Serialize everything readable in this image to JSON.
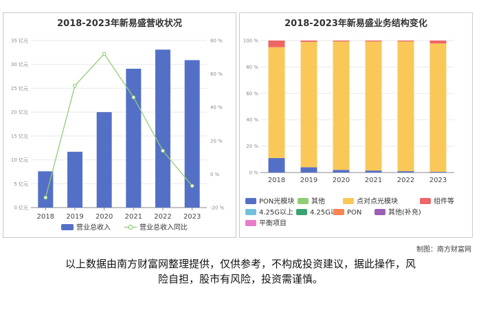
{
  "chart_data": [
    {
      "type": "bar",
      "title": "2018-2023年新易盛营收状况",
      "categories": [
        "2018",
        "2019",
        "2020",
        "2021",
        "2022",
        "2023"
      ],
      "series": [
        {
          "name": "营业总收入",
          "type": "bar",
          "axis": "left",
          "color": "#5470c6",
          "values": [
            7.6,
            11.7,
            20.0,
            29.1,
            33.1,
            30.9
          ]
        },
        {
          "name": "营业总收入同比",
          "type": "line",
          "axis": "right",
          "color": "#91cc75",
          "values": [
            -14.0,
            53.0,
            72.0,
            46.0,
            14.0,
            -7.0
          ]
        }
      ],
      "y_left": {
        "ticks": [
          "0 亿元",
          "5 亿元",
          "10 亿元",
          "15 亿元",
          "20 亿元",
          "25 亿元",
          "30 亿元",
          "35 亿元"
        ],
        "ylim": [
          0,
          35
        ]
      },
      "y_right": {
        "ticks": [
          "-20 %",
          "0 %",
          "20 %",
          "40 %",
          "60 %",
          "80 %"
        ],
        "ylim": [
          -20,
          80
        ]
      },
      "legend": "bottom"
    },
    {
      "type": "bar",
      "stacked": true,
      "title": "2018-2023年新易盛业务结构变化",
      "categories": [
        "2018",
        "2019",
        "2020",
        "2021",
        "2022",
        "2023"
      ],
      "series": [
        {
          "name": "PON光模块",
          "color": "#5470c6",
          "values": [
            11,
            4,
            2,
            1.5,
            1,
            0.5
          ]
        },
        {
          "name": "其他",
          "color": "#91cc75",
          "values": [
            0,
            0,
            0,
            0,
            0,
            0
          ]
        },
        {
          "name": "点对点光模块",
          "color": "#fac858",
          "values": [
            84,
            95,
            97.3,
            97.8,
            98.3,
            97.3
          ]
        },
        {
          "name": "组件等",
          "color": "#ee6666",
          "values": [
            5,
            1,
            0.7,
            0.7,
            0.7,
            2.2
          ]
        },
        {
          "name": "4.25G以上",
          "color": "#73c0de",
          "values": [
            0,
            0,
            0,
            0,
            0,
            0
          ]
        },
        {
          "name": "4.25G以下",
          "color": "#3ba272",
          "values": [
            0,
            0,
            0,
            0,
            0,
            0
          ]
        },
        {
          "name": "PON",
          "color": "#fc8452",
          "values": [
            0,
            0,
            0,
            0,
            0,
            0
          ]
        },
        {
          "name": "其他(补充)",
          "color": "#9a60b4",
          "values": [
            0,
            0,
            0,
            0,
            0,
            0
          ]
        },
        {
          "name": "平衡项目",
          "color": "#ea7ccc",
          "values": [
            0,
            0,
            0,
            0,
            0,
            0
          ]
        }
      ],
      "y_ticks": [
        "0 %",
        "20 %",
        "40 %",
        "60 %",
        "80 %",
        "100 %"
      ],
      "ylim": [
        0,
        100
      ],
      "legend": "bottom"
    }
  ],
  "footer": {
    "credit": "制图：南方财富网",
    "disclaimer_line1": "以上数据由南方财富网整理提供，仅供参考，不构成投资建议，据此操作，风",
    "disclaimer_line2": "险自担，股市有风险，投资需谨慎。"
  }
}
